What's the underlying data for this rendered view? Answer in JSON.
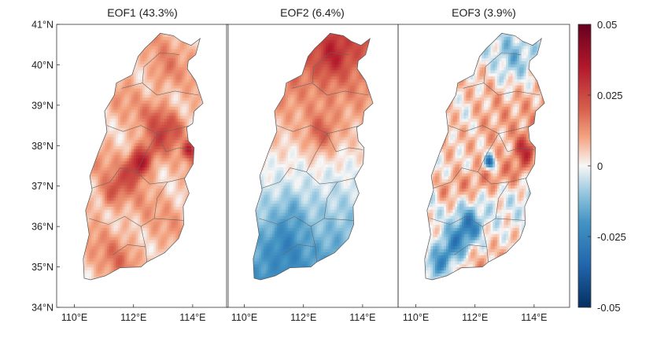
{
  "chart_data": {
    "type": "heatmap",
    "panels": [
      {
        "title": "EOF1 (43.3%)",
        "pattern": "eof1"
      },
      {
        "title": "EOF2 (6.4%)",
        "pattern": "eof2"
      },
      {
        "title": "EOF3 (3.9%)",
        "pattern": "eof3"
      }
    ],
    "x_ticks": [
      {
        "value": 110,
        "label": "110°E"
      },
      {
        "value": 112,
        "label": "112°E"
      },
      {
        "value": 114,
        "label": "114°E"
      }
    ],
    "xlim": [
      109.4,
      115.2
    ],
    "y_ticks": [
      {
        "value": 34,
        "label": "34°N"
      },
      {
        "value": 35,
        "label": "35°N"
      },
      {
        "value": 36,
        "label": "36°N"
      },
      {
        "value": 37,
        "label": "37°N"
      },
      {
        "value": 38,
        "label": "38°N"
      },
      {
        "value": 39,
        "label": "39°N"
      },
      {
        "value": 40,
        "label": "40°N"
      },
      {
        "value": 41,
        "label": "41°N"
      }
    ],
    "ylim": [
      34,
      41
    ],
    "colorbar": {
      "range": [
        -0.05,
        0.05
      ],
      "colormap": "blue-white-red",
      "ticks": [
        {
          "value": 0.05,
          "label": "0.05"
        },
        {
          "value": 0.025,
          "label": "0.025"
        },
        {
          "value": 0,
          "label": "0"
        },
        {
          "value": -0.025,
          "label": "-0.025"
        },
        {
          "value": -0.05,
          "label": "-0.05"
        }
      ]
    }
  }
}
